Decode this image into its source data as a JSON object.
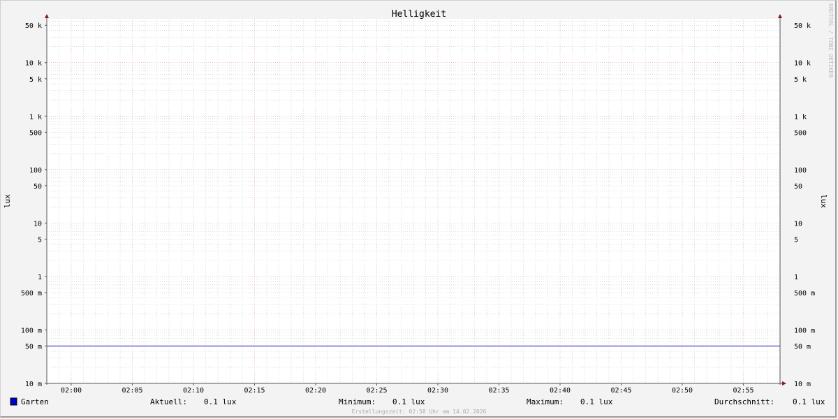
{
  "chart_data": {
    "type": "line",
    "title": "Helligkeit",
    "ylabel": "lux",
    "ylabel_right": "lux",
    "y_scale": "log",
    "ylim": [
      0.01,
      66000
    ],
    "y_ticks": [
      {
        "value": 50000,
        "label": "50 k"
      },
      {
        "value": 10000,
        "label": "10 k"
      },
      {
        "value": 5000,
        "label": "5 k"
      },
      {
        "value": 1000,
        "label": "1 k"
      },
      {
        "value": 500,
        "label": "500"
      },
      {
        "value": 100,
        "label": "100"
      },
      {
        "value": 50,
        "label": "50"
      },
      {
        "value": 10,
        "label": "10"
      },
      {
        "value": 5,
        "label": "5"
      },
      {
        "value": 1,
        "label": "1"
      },
      {
        "value": 0.5,
        "label": "500 m"
      },
      {
        "value": 0.1,
        "label": "100 m"
      },
      {
        "value": 0.05,
        "label": "50 m"
      },
      {
        "value": 0.01,
        "label": "10 m"
      }
    ],
    "xlim": [
      "01:58",
      "02:58"
    ],
    "x_ticks": [
      "02:00",
      "02:05",
      "02:10",
      "02:15",
      "02:20",
      "02:25",
      "02:30",
      "02:35",
      "02:40",
      "02:45",
      "02:50",
      "02:55"
    ],
    "grid": true,
    "series": [
      {
        "name": "Garten",
        "color": "#0000cc",
        "x": [
          "01:58",
          "02:58"
        ],
        "y": [
          0.05,
          0.05
        ]
      }
    ],
    "legend": {
      "position": "bottom",
      "series_label": "Garten",
      "stats": [
        {
          "label": "Aktuell:",
          "value": "0.1 lux"
        },
        {
          "label": "Minimum:",
          "value": "0.1 lux"
        },
        {
          "label": "Maximum:",
          "value": "0.1 lux"
        },
        {
          "label": "Durchschnitt:",
          "value": "0.1 lux"
        }
      ]
    },
    "footer": "Erstellungszeit: 02:58 Uhr am 14.02.2026",
    "watermark": "RRDTOOL / TOBI OETIKER",
    "colors": {
      "major_grid": "#e0a0a0",
      "minor_grid": "#c8c8c8",
      "axis": "#555555",
      "arrow": "#8b1a1a"
    }
  }
}
